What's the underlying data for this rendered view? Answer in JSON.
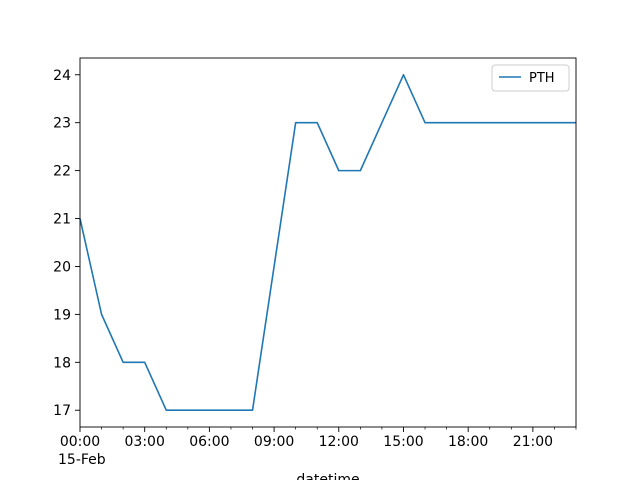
{
  "chart_data": {
    "type": "line",
    "xlabel": "datetime",
    "x_sublabel": "15-Feb",
    "x_ticks": [
      "00:00",
      "03:00",
      "06:00",
      "09:00",
      "12:00",
      "15:00",
      "18:00",
      "21:00"
    ],
    "x": [
      "00:00",
      "01:00",
      "02:00",
      "03:00",
      "04:00",
      "05:00",
      "06:00",
      "07:00",
      "08:00",
      "09:00",
      "10:00",
      "11:00",
      "12:00",
      "13:00",
      "14:00",
      "15:00",
      "16:00",
      "17:00",
      "18:00",
      "19:00",
      "20:00",
      "21:00",
      "22:00",
      "23:00"
    ],
    "y_ticks": [
      17,
      18,
      19,
      20,
      21,
      22,
      23,
      24
    ],
    "ylim": [
      16.65,
      24.35
    ],
    "series": [
      {
        "name": "PTH",
        "color": "#1f77b4",
        "values": [
          21,
          19,
          18,
          18,
          17,
          17,
          17,
          17,
          17,
          20,
          23,
          23,
          22,
          22,
          23,
          24,
          23,
          23,
          23,
          23,
          23,
          23,
          23,
          23
        ]
      }
    ],
    "legend": {
      "position": "top-right",
      "entries": [
        "PTH"
      ]
    },
    "grid": false
  }
}
